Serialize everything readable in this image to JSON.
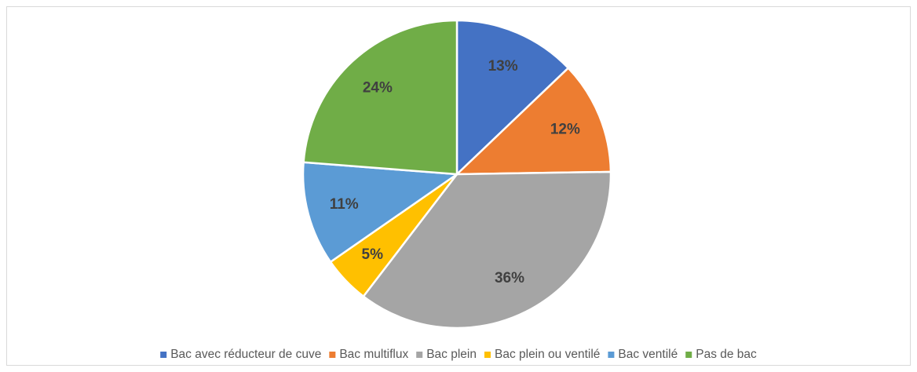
{
  "chart_data": {
    "type": "pie",
    "categories": [
      "Bac avec réducteur de cuve",
      "Bac multiflux",
      "Bac plein",
      "Bac plein ou ventilé",
      "Bac ventilé",
      "Pas de bac"
    ],
    "values": [
      13,
      12,
      36,
      5,
      11,
      24
    ],
    "value_labels": [
      "13%",
      "12%",
      "36%",
      "5%",
      "11%",
      "24%"
    ],
    "colors": [
      "#4472c4",
      "#ed7d31",
      "#a5a5a5",
      "#ffc000",
      "#5b9bd5",
      "#70ad47"
    ],
    "legend": "bottom"
  }
}
